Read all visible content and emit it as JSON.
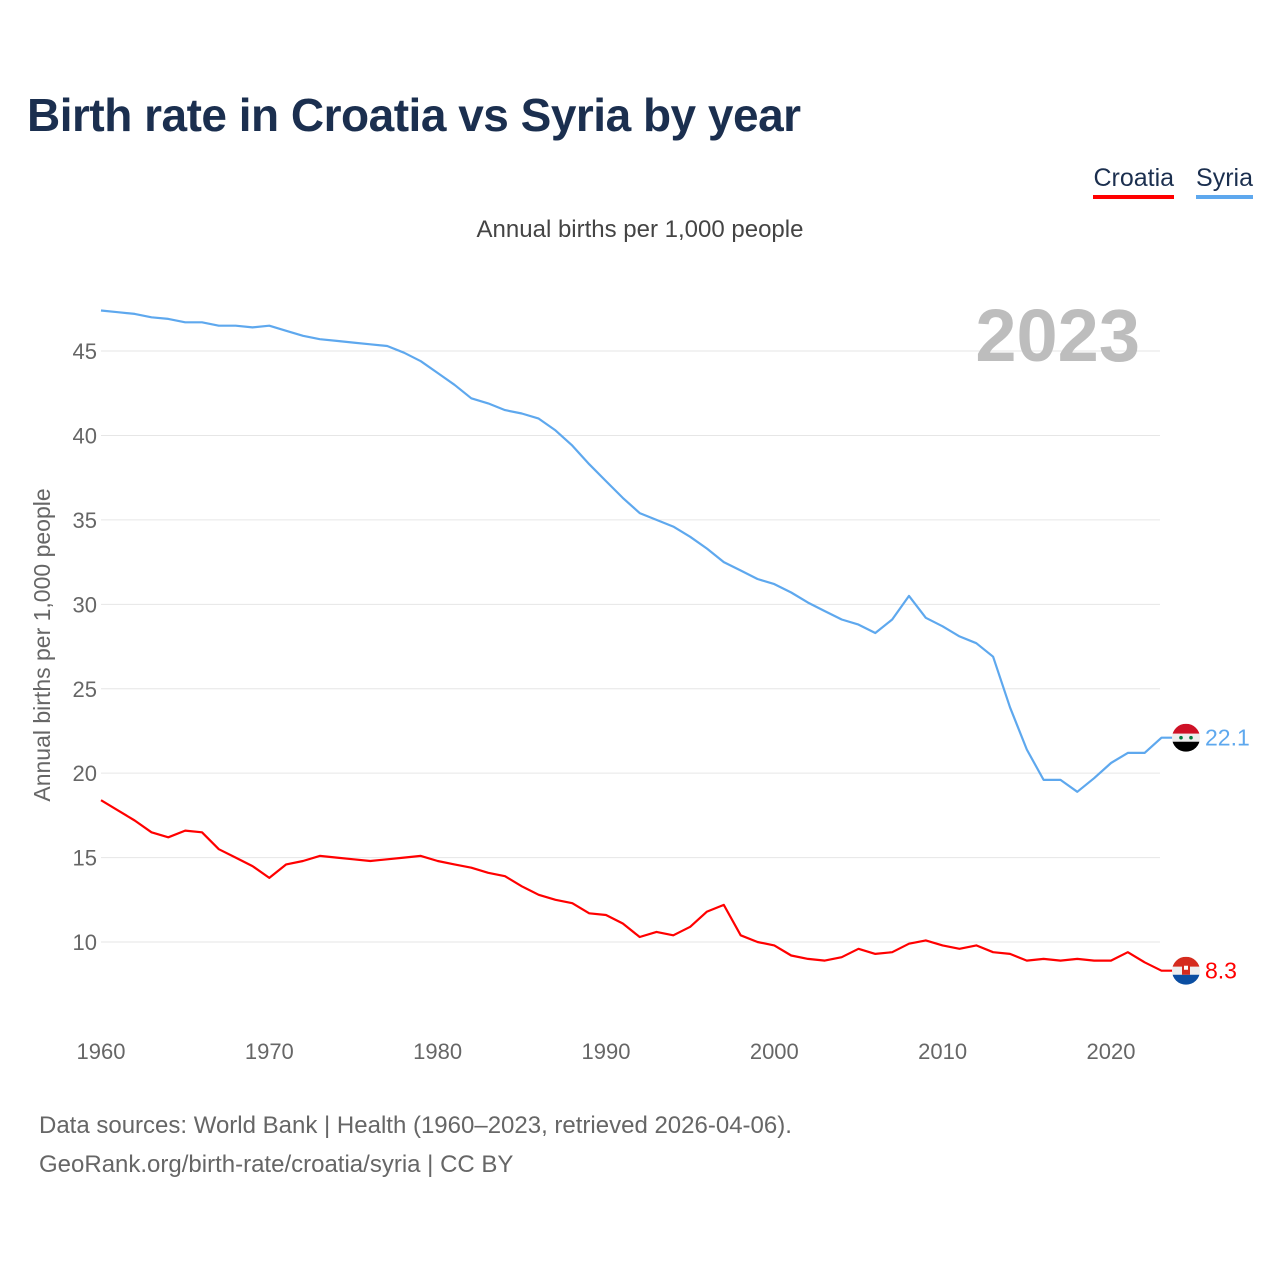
{
  "title": "Birth rate in Croatia vs Syria by year",
  "legend": [
    {
      "label": "Croatia",
      "color": "#ff0000"
    },
    {
      "label": "Syria",
      "color": "#5ea8ee"
    }
  ],
  "subtitle": "Annual births per 1,000 people",
  "year_watermark": "2023",
  "footer": {
    "line1": "Data sources: World Bank | Health (1960–2023, retrieved 2026-04-06).",
    "line2": "GeoRank.org/birth-rate/croatia/syria | CC BY"
  },
  "chart_data": {
    "type": "line",
    "title": "Birth rate in Croatia vs Syria by year",
    "xlabel": "",
    "ylabel": "Annual births per 1,000 people",
    "xlim": [
      1960,
      2023
    ],
    "ylim": [
      6.5,
      48
    ],
    "xticks": [
      1960,
      1970,
      1980,
      1990,
      2000,
      2010,
      2020
    ],
    "yticks": [
      10,
      15,
      20,
      25,
      30,
      35,
      40,
      45
    ],
    "grid": true,
    "legend_position": "top-right",
    "x_start": 1960,
    "series": [
      {
        "name": "Croatia",
        "color": "#ff0000",
        "end_label": "8.3",
        "flag_icon": "croatia-flag-icon",
        "values": [
          18.4,
          17.8,
          17.2,
          16.5,
          16.2,
          16.6,
          16.5,
          15.5,
          15.0,
          14.5,
          13.8,
          14.6,
          14.8,
          15.1,
          15.0,
          14.9,
          14.8,
          14.9,
          15.0,
          15.1,
          14.8,
          14.6,
          14.4,
          14.1,
          13.9,
          13.3,
          12.8,
          12.5,
          12.3,
          11.7,
          11.6,
          11.1,
          10.3,
          10.6,
          10.4,
          10.9,
          11.8,
          12.2,
          10.4,
          10.0,
          9.8,
          9.2,
          9.0,
          8.9,
          9.1,
          9.6,
          9.3,
          9.4,
          9.9,
          10.1,
          9.8,
          9.6,
          9.8,
          9.4,
          9.3,
          8.9,
          9.0,
          8.9,
          9.0,
          8.9,
          8.9,
          9.4,
          8.8,
          8.3
        ]
      },
      {
        "name": "Syria",
        "color": "#5ea8ee",
        "end_label": "22.1",
        "flag_icon": "syria-flag-icon",
        "values": [
          47.4,
          47.3,
          47.2,
          47.0,
          46.9,
          46.7,
          46.7,
          46.5,
          46.5,
          46.4,
          46.5,
          46.2,
          45.9,
          45.7,
          45.6,
          45.5,
          45.4,
          45.3,
          44.9,
          44.4,
          43.7,
          43.0,
          42.2,
          41.9,
          41.5,
          41.3,
          41.0,
          40.3,
          39.4,
          38.3,
          37.3,
          36.3,
          35.4,
          35.0,
          34.6,
          34.0,
          33.3,
          32.5,
          32.0,
          31.5,
          31.2,
          30.7,
          30.1,
          29.6,
          29.1,
          28.8,
          28.3,
          29.1,
          30.5,
          29.2,
          28.7,
          28.1,
          27.7,
          26.9,
          23.9,
          21.4,
          19.6,
          19.6,
          18.9,
          19.7,
          20.6,
          21.2,
          21.2,
          22.1
        ]
      }
    ]
  }
}
